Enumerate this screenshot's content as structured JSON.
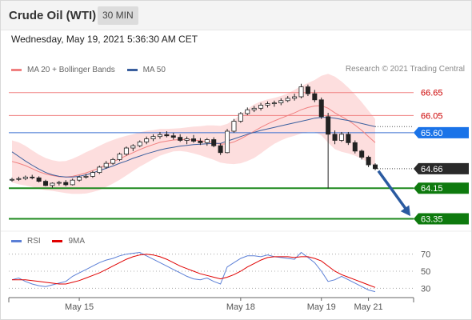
{
  "header": {
    "title": "Crude Oil (WTI)",
    "timeframe": "30 MIN",
    "timestamp": "Wednesday, May 19, 2021 5:36:30 AM CET"
  },
  "legend": {
    "ma20": {
      "label": "MA 20 + Bollinger Bands",
      "color": "#f08080"
    },
    "ma50": {
      "label": "MA 50",
      "color": "#3a5f9e"
    },
    "source": "Research © 2021 Trading Central"
  },
  "rsi_legend": {
    "rsi": {
      "label": "RSI",
      "color": "#5b7fd6"
    },
    "ma": {
      "label": "9MA",
      "color": "#e00000"
    }
  },
  "chart_data": [
    {
      "type": "line",
      "chart": "price",
      "ylim": [
        63.15,
        67.0
      ],
      "x_ticks": [
        "May 15",
        "May 18",
        "May 19",
        "May 21"
      ],
      "x_tick_positions": [
        10,
        34,
        46,
        53
      ],
      "candles": [
        [
          64.38,
          64.42,
          64.32,
          64.38
        ],
        [
          64.38,
          64.45,
          64.34,
          64.4
        ],
        [
          64.4,
          64.48,
          64.36,
          64.44
        ],
        [
          64.44,
          64.5,
          64.38,
          64.42
        ],
        [
          64.42,
          64.46,
          64.3,
          64.33
        ],
        [
          64.33,
          64.37,
          64.2,
          64.22
        ],
        [
          64.22,
          64.3,
          64.16,
          64.28
        ],
        [
          64.28,
          64.34,
          64.22,
          64.3
        ],
        [
          64.3,
          64.36,
          64.2,
          64.24
        ],
        [
          64.24,
          64.4,
          64.22,
          64.36
        ],
        [
          64.36,
          64.48,
          64.32,
          64.44
        ],
        [
          64.44,
          64.52,
          64.4,
          64.46
        ],
        [
          64.46,
          64.6,
          64.42,
          64.56
        ],
        [
          64.56,
          64.74,
          64.52,
          64.7
        ],
        [
          64.7,
          64.86,
          64.66,
          64.8
        ],
        [
          64.8,
          64.94,
          64.76,
          64.9
        ],
        [
          64.9,
          65.08,
          64.86,
          65.04
        ],
        [
          65.04,
          65.24,
          65.0,
          65.2
        ],
        [
          65.2,
          65.3,
          65.12,
          65.26
        ],
        [
          65.26,
          65.4,
          65.22,
          65.36
        ],
        [
          65.36,
          65.5,
          65.3,
          65.44
        ],
        [
          65.44,
          65.56,
          65.38,
          65.5
        ],
        [
          65.5,
          65.62,
          65.44,
          65.55
        ],
        [
          65.55,
          65.64,
          65.48,
          65.52
        ],
        [
          65.52,
          65.6,
          65.42,
          65.48
        ],
        [
          65.48,
          65.56,
          65.36,
          65.4
        ],
        [
          65.4,
          65.5,
          65.3,
          65.44
        ],
        [
          65.44,
          65.54,
          65.34,
          65.38
        ],
        [
          65.38,
          65.46,
          65.28,
          65.34
        ],
        [
          65.34,
          65.46,
          65.26,
          65.42
        ],
        [
          65.42,
          65.48,
          65.22,
          65.26
        ],
        [
          65.26,
          65.32,
          65.02,
          65.08
        ],
        [
          65.08,
          65.7,
          65.06,
          65.64
        ],
        [
          65.64,
          65.96,
          65.6,
          65.9
        ],
        [
          65.9,
          66.14,
          65.86,
          66.1
        ],
        [
          66.1,
          66.26,
          66.06,
          66.2
        ],
        [
          66.2,
          66.3,
          66.14,
          66.24
        ],
        [
          66.24,
          66.38,
          66.18,
          66.32
        ],
        [
          66.32,
          66.42,
          66.26,
          66.36
        ],
        [
          66.36,
          66.44,
          66.28,
          66.38
        ],
        [
          66.38,
          66.5,
          66.32,
          66.44
        ],
        [
          66.44,
          66.56,
          66.4,
          66.5
        ],
        [
          66.5,
          66.62,
          66.44,
          66.54
        ],
        [
          66.54,
          66.88,
          66.5,
          66.8
        ],
        [
          66.8,
          66.86,
          66.56,
          66.62
        ],
        [
          66.62,
          66.72,
          66.4,
          66.46
        ],
        [
          66.46,
          66.52,
          65.96,
          66.02
        ],
        [
          66.02,
          66.12,
          64.14,
          65.56
        ],
        [
          65.56,
          65.66,
          65.3,
          65.4
        ],
        [
          65.4,
          65.62,
          65.36,
          65.56
        ],
        [
          65.56,
          65.62,
          65.28,
          65.34
        ],
        [
          65.34,
          65.4,
          65.06,
          65.12
        ],
        [
          65.12,
          65.16,
          64.9,
          64.96
        ],
        [
          64.96,
          65.0,
          64.7,
          64.76
        ],
        [
          64.76,
          64.8,
          64.62,
          64.66
        ]
      ],
      "ma20": [
        64.85,
        64.8,
        64.74,
        64.66,
        64.58,
        64.52,
        64.48,
        64.45,
        64.44,
        64.46,
        64.5,
        64.55,
        64.61,
        64.68,
        64.76,
        64.84,
        64.92,
        65.0,
        65.08,
        65.16,
        65.23,
        65.29,
        65.35,
        65.38,
        65.41,
        65.42,
        65.42,
        65.41,
        65.39,
        65.37,
        65.34,
        65.3,
        65.31,
        65.36,
        65.44,
        65.54,
        65.64,
        65.74,
        65.83,
        65.91,
        65.98,
        66.05,
        66.12,
        66.2,
        66.26,
        66.3,
        66.31,
        66.24,
        66.12,
        66.02,
        65.92,
        65.8,
        65.66,
        65.5,
        65.34
      ],
      "ma50": [
        65.1,
        64.98,
        64.86,
        64.75,
        64.65,
        64.56,
        64.5,
        64.46,
        64.44,
        64.44,
        64.46,
        64.5,
        64.55,
        64.61,
        64.67,
        64.73,
        64.8,
        64.86,
        64.93,
        64.99,
        65.05,
        65.1,
        65.15,
        65.19,
        65.22,
        65.25,
        65.27,
        65.29,
        65.3,
        65.31,
        65.32,
        65.32,
        65.38,
        65.44,
        65.5,
        65.56,
        65.61,
        65.66,
        65.7,
        65.74,
        65.78,
        65.82,
        65.86,
        65.9,
        65.94,
        65.98,
        66.0,
        66.0,
        65.98,
        65.95,
        65.92,
        65.88,
        65.84,
        65.8,
        65.76
      ],
      "bb_band_width": [
        0.55,
        0.55,
        0.52,
        0.48,
        0.45,
        0.42,
        0.4,
        0.4,
        0.42,
        0.46,
        0.5,
        0.54,
        0.56,
        0.58,
        0.58,
        0.57,
        0.55,
        0.52,
        0.48,
        0.45,
        0.42,
        0.38,
        0.35,
        0.32,
        0.3,
        0.3,
        0.32,
        0.35,
        0.38,
        0.42,
        0.45,
        0.48,
        0.52,
        0.58,
        0.64,
        0.68,
        0.7,
        0.68,
        0.64,
        0.6,
        0.58,
        0.58,
        0.6,
        0.62,
        0.64,
        0.68,
        0.78,
        0.9,
        0.95,
        0.92,
        0.86,
        0.8,
        0.74,
        0.68,
        0.62
      ],
      "levels": [
        {
          "value": 66.65,
          "label": "66.65",
          "kind": "resistance"
        },
        {
          "value": 66.05,
          "label": "66.05",
          "kind": "resistance"
        },
        {
          "value": 65.6,
          "label": "65.60",
          "kind": "pivot"
        },
        {
          "value": 64.66,
          "label": "64.66",
          "kind": "last"
        },
        {
          "value": 64.15,
          "label": "64.15",
          "kind": "support"
        },
        {
          "value": 63.35,
          "label": "63.35",
          "kind": "support"
        }
      ],
      "forecast_arrow": {
        "from": 64.6,
        "to": 63.42
      }
    },
    {
      "type": "line",
      "chart": "rsi",
      "ylim": [
        20,
        80
      ],
      "y_ticks": [
        70,
        50,
        30
      ],
      "rsi": [
        40,
        42,
        38,
        35,
        33,
        32,
        34,
        36,
        38,
        44,
        48,
        52,
        56,
        60,
        63,
        65,
        68,
        70,
        71,
        72,
        68,
        64,
        60,
        56,
        52,
        48,
        44,
        41,
        40,
        42,
        38,
        35,
        55,
        60,
        65,
        68,
        68,
        67,
        69,
        67,
        66,
        65,
        64,
        72,
        66,
        60,
        50,
        38,
        40,
        44,
        40,
        36,
        32,
        28,
        26
      ],
      "ma9": [
        40,
        40,
        40,
        39,
        38,
        37,
        36,
        35,
        35,
        37,
        39,
        42,
        45,
        48,
        52,
        56,
        60,
        64,
        67,
        69,
        70,
        69,
        67,
        64,
        60,
        56,
        53,
        50,
        47,
        45,
        43,
        41,
        43,
        46,
        50,
        55,
        59,
        63,
        66,
        67,
        67,
        67,
        66,
        67,
        67,
        65,
        62,
        56,
        50,
        46,
        43,
        40,
        37,
        34,
        31
      ]
    }
  ]
}
